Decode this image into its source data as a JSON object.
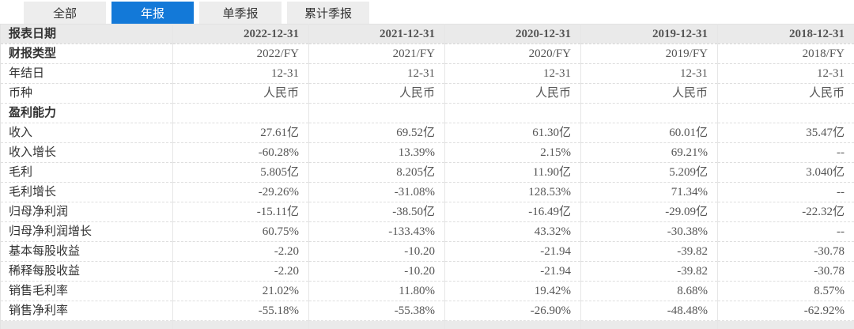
{
  "tabs": {
    "items": [
      {
        "name": "tab-all",
        "label": "全部",
        "active": false
      },
      {
        "name": "tab-annual-report",
        "label": "年报",
        "active": true
      },
      {
        "name": "tab-single-quarter-report",
        "label": "单季报",
        "active": false
      },
      {
        "name": "tab-cumulative-quarter-report",
        "label": "累计季报",
        "active": false
      }
    ]
  },
  "colors": {
    "active_tab_bg": "#1379d8",
    "active_tab_text": "#ffffff",
    "inactive_tab_bg": "#ededed",
    "header_row_bg": "#eaeaea",
    "label_text": "#333333",
    "value_text": "#555555"
  },
  "table": {
    "columns": [
      "报表日期",
      "2022-12-31",
      "2021-12-31",
      "2020-12-31",
      "2019-12-31",
      "2018-12-31"
    ],
    "rows": [
      {
        "label": "财报类型",
        "style": "bold",
        "values": [
          "2022/FY",
          "2021/FY",
          "2020/FY",
          "2019/FY",
          "2018/FY"
        ]
      },
      {
        "label": "年结日",
        "style": "normal",
        "values": [
          "12-31",
          "12-31",
          "12-31",
          "12-31",
          "12-31"
        ]
      },
      {
        "label": "币种",
        "style": "normal",
        "values": [
          "人民币",
          "人民币",
          "人民币",
          "人民币",
          "人民币"
        ]
      },
      {
        "label": "盈利能力",
        "style": "section",
        "values": [
          "",
          "",
          "",
          "",
          ""
        ]
      },
      {
        "label": "收入",
        "style": "normal",
        "values": [
          "27.61亿",
          "69.52亿",
          "61.30亿",
          "60.01亿",
          "35.47亿"
        ]
      },
      {
        "label": "收入增长",
        "style": "normal",
        "values": [
          "-60.28%",
          "13.39%",
          "2.15%",
          "69.21%",
          "--"
        ]
      },
      {
        "label": "毛利",
        "style": "normal",
        "values": [
          "5.805亿",
          "8.205亿",
          "11.90亿",
          "5.209亿",
          "3.040亿"
        ]
      },
      {
        "label": "毛利增长",
        "style": "normal",
        "values": [
          "-29.26%",
          "-31.08%",
          "128.53%",
          "71.34%",
          "--"
        ]
      },
      {
        "label": "归母净利润",
        "style": "normal",
        "values": [
          "-15.11亿",
          "-38.50亿",
          "-16.49亿",
          "-29.09亿",
          "-22.32亿"
        ]
      },
      {
        "label": "归母净利润增长",
        "style": "normal",
        "values": [
          "60.75%",
          "-133.43%",
          "43.32%",
          "-30.38%",
          "--"
        ]
      },
      {
        "label": "基本每股收益",
        "style": "normal",
        "values": [
          "-2.20",
          "-10.20",
          "-21.94",
          "-39.82",
          "-30.78"
        ]
      },
      {
        "label": "稀释每股收益",
        "style": "normal",
        "values": [
          "-2.20",
          "-10.20",
          "-21.94",
          "-39.82",
          "-30.78"
        ]
      },
      {
        "label": "销售毛利率",
        "style": "normal",
        "values": [
          "21.02%",
          "11.80%",
          "19.42%",
          "8.68%",
          "8.57%"
        ]
      },
      {
        "label": "销售净利率",
        "style": "normal",
        "values": [
          "-55.18%",
          "-55.38%",
          "-26.90%",
          "-48.48%",
          "-62.92%"
        ]
      }
    ]
  }
}
